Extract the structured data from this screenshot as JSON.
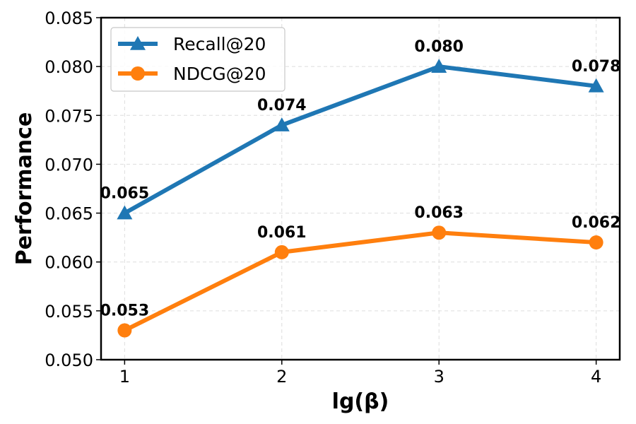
{
  "chart_data": {
    "type": "line",
    "title": "",
    "xlabel": "lg(β)",
    "ylabel": "Performance",
    "x": [
      1,
      2,
      3,
      4
    ],
    "x_tick_labels": [
      "1",
      "2",
      "3",
      "4"
    ],
    "xlim": [
      0.85,
      4.15
    ],
    "ylim": [
      0.05,
      0.085
    ],
    "y_ticks": [
      0.05,
      0.055,
      0.06,
      0.065,
      0.07,
      0.075,
      0.08,
      0.085
    ],
    "y_tick_labels": [
      "0.050",
      "0.055",
      "0.060",
      "0.065",
      "0.070",
      "0.075",
      "0.080",
      "0.085"
    ],
    "grid": true,
    "legend_position": "top-left",
    "series": [
      {
        "name": "Recall@20",
        "values": [
          0.065,
          0.074,
          0.08,
          0.078
        ],
        "data_labels": [
          "0.065",
          "0.074",
          "0.080",
          "0.078"
        ],
        "color": "#1f77b4",
        "marker": "triangle"
      },
      {
        "name": "NDCG@20",
        "values": [
          0.053,
          0.061,
          0.063,
          0.062
        ],
        "data_labels": [
          "0.053",
          "0.061",
          "0.063",
          "0.062"
        ],
        "color": "#ff7f0e",
        "marker": "circle"
      }
    ]
  }
}
